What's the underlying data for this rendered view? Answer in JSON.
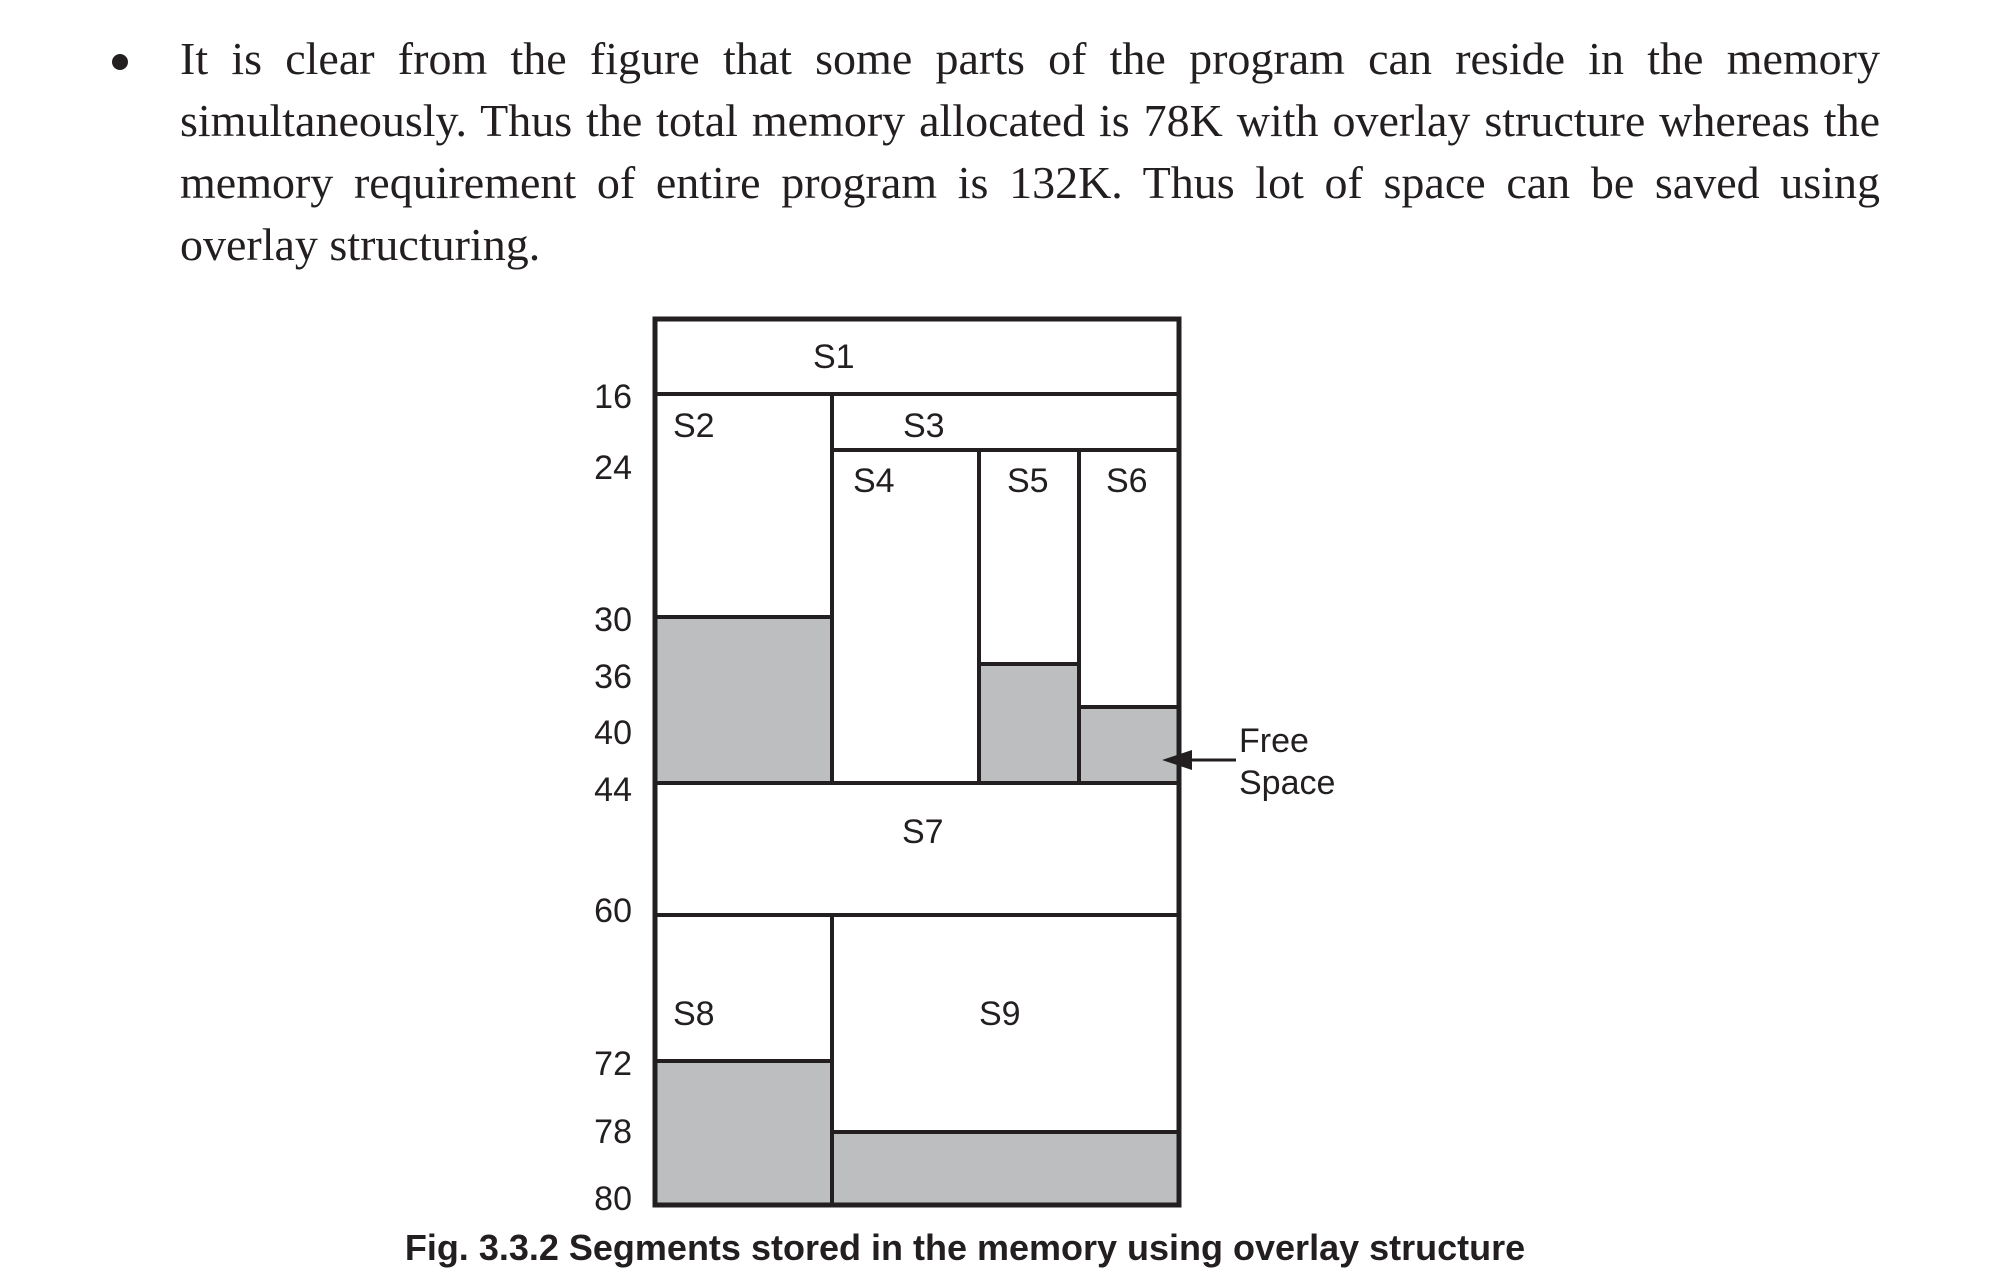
{
  "paragraph": {
    "text": "It is clear from the figure that some parts of the program can reside in the memory simultaneously. Thus the total memory allocated is 78K with overlay structure whereas the memory requirement of entire program is 132K. Thus lot of space can be saved using overlay structuring."
  },
  "diagram": {
    "axis_labels": [
      "16",
      "24",
      "30",
      "36",
      "40",
      "44",
      "60",
      "72",
      "78",
      "80"
    ],
    "segments": {
      "s1": "S1",
      "s2": "S2",
      "s3": "S3",
      "s4": "S4",
      "s5": "S5",
      "s6": "S6",
      "s7": "S7",
      "s8": "S8",
      "s9": "S9"
    },
    "free_space_label": {
      "line1": "Free",
      "line2": "Space"
    },
    "colors": {
      "free_space_fill": "#bcbec0",
      "outline": "#231f20"
    }
  },
  "caption": {
    "text": "Fig. 3.3.2 Segments stored in the memory using overlay structure"
  }
}
